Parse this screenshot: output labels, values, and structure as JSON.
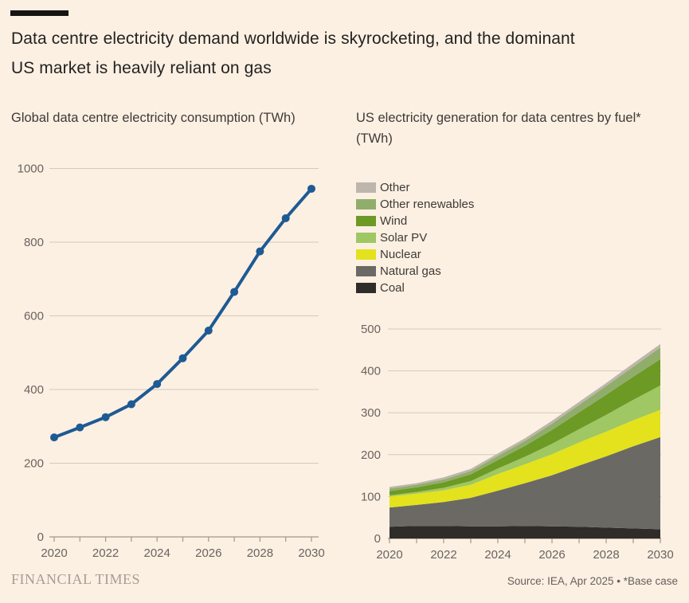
{
  "header": {
    "title_line1": "Data centre electricity demand worldwide is skyrocketing, and the dominant",
    "title_line2": "US market is heavily reliant on gas"
  },
  "footer": {
    "brand": "FINANCIAL TIMES",
    "source": "Source: IEA, Apr 2025 • *Base case"
  },
  "colors": {
    "background": "#fcf0e3",
    "grid": "#d5c9bc",
    "axis": "#a19789",
    "tick_text": "#6a645e",
    "line_blue": "#1e5a94"
  },
  "chart_data": [
    {
      "id": "global-consumption",
      "type": "line",
      "title": "Global data centre electricity consumption (TWh)",
      "x": [
        2020,
        2021,
        2022,
        2023,
        2024,
        2025,
        2026,
        2027,
        2028,
        2029,
        2030
      ],
      "values": [
        270,
        297,
        325,
        360,
        415,
        485,
        560,
        665,
        775,
        865,
        945
      ],
      "ylim": [
        0,
        1000
      ],
      "y_ticks": [
        0,
        200,
        400,
        600,
        800,
        1000
      ],
      "x_tick_labels": [
        2020,
        2022,
        2024,
        2026,
        2028,
        2030
      ],
      "grid": true,
      "line_color": "#1e5a94",
      "marker": "circle"
    },
    {
      "id": "us-generation-by-fuel",
      "type": "area",
      "title_line1": "US electricity generation for data centres by fuel*",
      "title_line2": "(TWh)",
      "x": [
        2020,
        2021,
        2022,
        2023,
        2024,
        2025,
        2026,
        2027,
        2028,
        2029,
        2030
      ],
      "series": [
        {
          "name": "Coal",
          "color": "#2f2c29",
          "values": [
            28,
            30,
            30,
            29,
            29,
            30,
            29,
            28,
            26,
            24,
            22
          ]
        },
        {
          "name": "Natural gas",
          "color": "#6b6964",
          "values": [
            46,
            50,
            57,
            68,
            85,
            102,
            122,
            146,
            170,
            196,
            220
          ]
        },
        {
          "name": "Nuclear",
          "color": "#e3e21d",
          "values": [
            26,
            27,
            28,
            31,
            40,
            45,
            50,
            55,
            59,
            62,
            65
          ]
        },
        {
          "name": "Solar PV",
          "color": "#9fc763",
          "values": [
            3,
            4,
            6,
            9,
            13,
            18,
            25,
            32,
            40,
            49,
            58
          ]
        },
        {
          "name": "Wind",
          "color": "#6c9a24",
          "values": [
            10,
            11,
            13,
            16,
            20,
            26,
            33,
            40,
            48,
            55,
            63
          ]
        },
        {
          "name": "Other renewables",
          "color": "#91ad6b",
          "values": [
            6,
            6,
            7,
            8,
            10,
            12,
            15,
            18,
            21,
            24,
            28
          ]
        },
        {
          "name": "Other",
          "color": "#bdb6ad",
          "values": [
            4,
            4,
            5,
            5,
            6,
            6,
            7,
            7,
            7,
            8,
            8
          ]
        }
      ],
      "legend_order": [
        "Other",
        "Other renewables",
        "Wind",
        "Solar PV",
        "Nuclear",
        "Natural gas",
        "Coal"
      ],
      "legend_position": "top-left",
      "ylim": [
        0,
        500
      ],
      "y_ticks": [
        0,
        100,
        200,
        300,
        400,
        500
      ],
      "x_tick_labels": [
        2020,
        2022,
        2024,
        2026,
        2028,
        2030
      ],
      "grid": true
    }
  ]
}
